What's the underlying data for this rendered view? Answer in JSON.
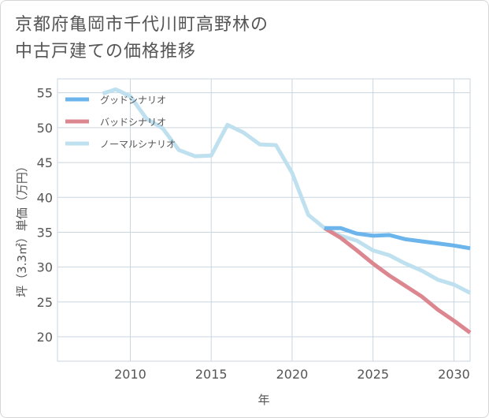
{
  "title_line1": "京都府亀岡市千代川町高野林の",
  "title_line2": "中古戸建ての価格推移",
  "chart_data": {
    "type": "line",
    "xlabel": "年",
    "ylabel": "坪（3.3㎡）単価（万円）",
    "xlim": [
      2005.5,
      2031
    ],
    "ylim": [
      16.5,
      57
    ],
    "xticks": [
      2010,
      2015,
      2020,
      2025,
      2030
    ],
    "yticks": [
      20,
      25,
      30,
      35,
      40,
      45,
      50,
      55
    ],
    "grid": true,
    "legend_position": "top-left",
    "series": [
      {
        "name": "グッドシナリオ",
        "color": "#6bb5ec",
        "points": [
          [
            2022,
            35.6
          ],
          [
            2023,
            35.6
          ],
          [
            2024,
            34.8
          ],
          [
            2025,
            34.5
          ],
          [
            2026,
            34.6
          ],
          [
            2027,
            34.0
          ],
          [
            2028,
            33.7
          ],
          [
            2029,
            33.4
          ],
          [
            2030,
            33.1
          ],
          [
            2031,
            32.7
          ]
        ]
      },
      {
        "name": "バッドシナリオ",
        "color": "#dc8690",
        "points": [
          [
            2022,
            35.6
          ],
          [
            2023,
            34.2
          ],
          [
            2024,
            32.4
          ],
          [
            2025,
            30.5
          ],
          [
            2026,
            28.8
          ],
          [
            2027,
            27.3
          ],
          [
            2028,
            25.8
          ],
          [
            2029,
            23.9
          ],
          [
            2030,
            22.3
          ],
          [
            2031,
            20.6
          ]
        ]
      },
      {
        "name": "ノーマルシナリオ",
        "color": "#bfe0ee",
        "points": [
          [
            2008.3,
            54.9
          ],
          [
            2009.1,
            55.5
          ],
          [
            2010,
            54.5
          ],
          [
            2011,
            51.3
          ],
          [
            2012,
            49.9
          ],
          [
            2013,
            46.8
          ],
          [
            2014,
            45.9
          ],
          [
            2015,
            46.0
          ],
          [
            2016,
            50.4
          ],
          [
            2017,
            49.3
          ],
          [
            2018,
            47.6
          ],
          [
            2019,
            47.5
          ],
          [
            2020,
            43.5
          ],
          [
            2021,
            37.5
          ],
          [
            2022,
            35.6
          ],
          [
            2023,
            34.5
          ],
          [
            2024,
            33.8
          ],
          [
            2025,
            32.4
          ],
          [
            2026,
            31.7
          ],
          [
            2027,
            30.5
          ],
          [
            2028,
            29.5
          ],
          [
            2029,
            28.2
          ],
          [
            2030,
            27.5
          ],
          [
            2031,
            26.3
          ]
        ]
      }
    ]
  }
}
